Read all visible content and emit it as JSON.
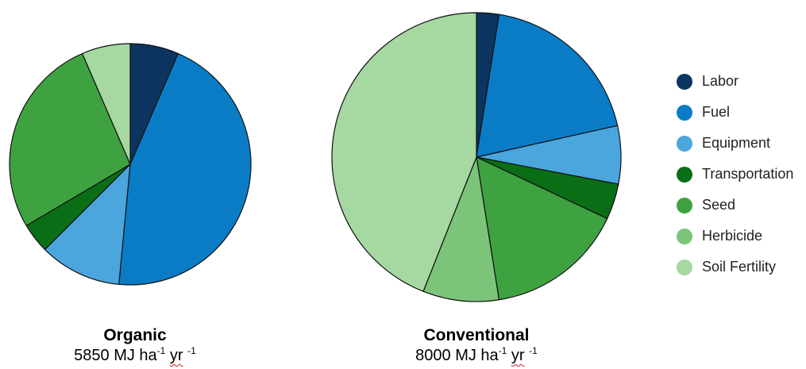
{
  "chart_data": [
    {
      "type": "pie",
      "title": "Organic",
      "subtitle": {
        "value": "5850",
        "unit_text": "MJ ha",
        "exp1": "-1",
        "unit2": "yr",
        "exp2": "-1"
      },
      "start_angle_deg": 0,
      "direction": "clockwise",
      "slices": [
        {
          "label": "Labor",
          "value": 6.5
        },
        {
          "label": "Fuel",
          "value": 45.0
        },
        {
          "label": "Equipment",
          "value": 11.0
        },
        {
          "label": "Transportation",
          "value": 4.0
        },
        {
          "label": "Seed",
          "value": 27.0
        },
        {
          "label": "Herbicide",
          "value": 0
        },
        {
          "label": "Soil Fertility",
          "value": 6.5
        }
      ]
    },
    {
      "type": "pie",
      "title": "Conventional",
      "subtitle": {
        "value": "8000",
        "unit_text": "MJ ha",
        "exp1": "-1",
        "unit2": "yr",
        "exp2": "-1"
      },
      "start_angle_deg": 0,
      "direction": "clockwise",
      "slices": [
        {
          "label": "Labor",
          "value": 2.5
        },
        {
          "label": "Fuel",
          "value": 19.0
        },
        {
          "label": "Equipment",
          "value": 6.5
        },
        {
          "label": "Transportation",
          "value": 4.0
        },
        {
          "label": "Seed",
          "value": 15.5
        },
        {
          "label": "Herbicide",
          "value": 8.5
        },
        {
          "label": "Soil Fertility",
          "value": 44.0
        }
      ]
    }
  ],
  "legend": {
    "placement": "right",
    "items": [
      {
        "label": "Labor",
        "color": "#0b3560"
      },
      {
        "label": "Fuel",
        "color": "#0a7cc6"
      },
      {
        "label": "Equipment",
        "color": "#4aa6dd"
      },
      {
        "label": "Transportation",
        "color": "#0a6e17"
      },
      {
        "label": "Seed",
        "color": "#3ea241"
      },
      {
        "label": "Herbicide",
        "color": "#7dc47b"
      },
      {
        "label": "Soil Fertility",
        "color": "#a6d8a2"
      }
    ]
  }
}
